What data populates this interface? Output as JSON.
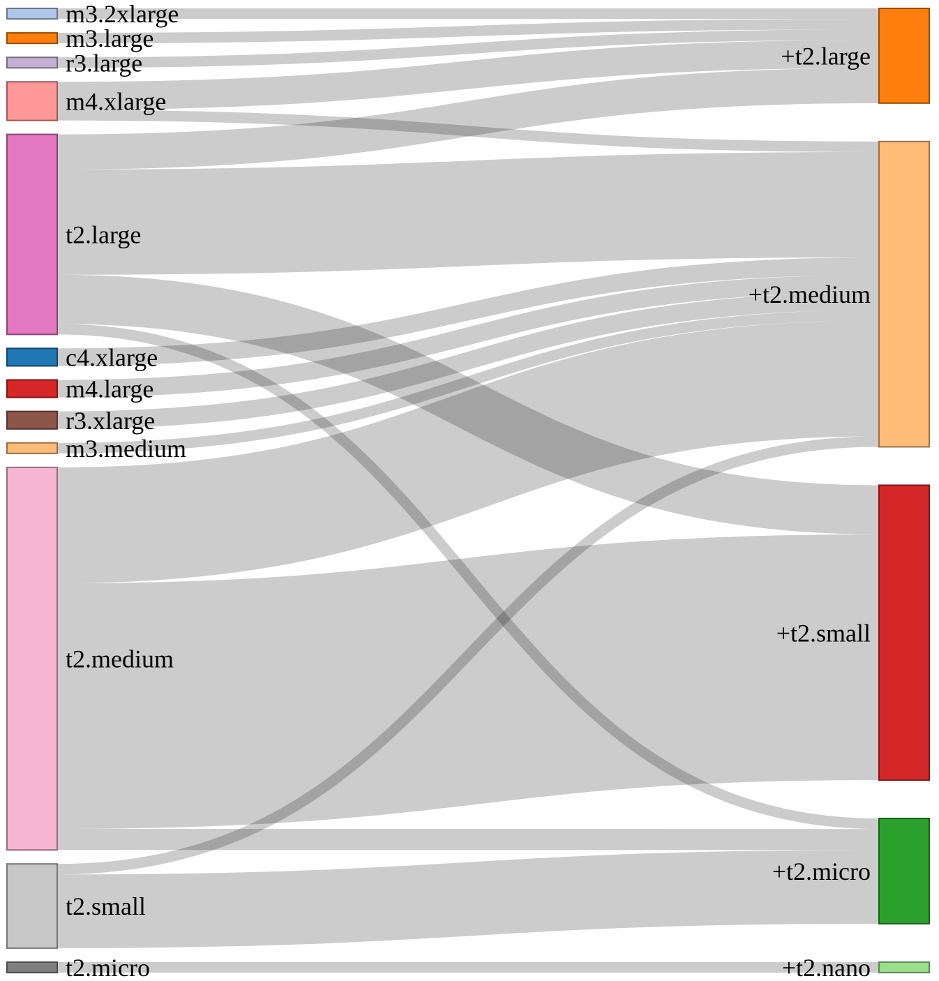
{
  "chart_data": {
    "type": "sankey",
    "title": "",
    "source_nodes": [
      {
        "id": "m3.2xlarge",
        "label": "m3.2xlarge",
        "color": "#aec7e8",
        "value": 3
      },
      {
        "id": "m3.large",
        "label": "m3.large",
        "color": "#ff7f0e",
        "value": 3
      },
      {
        "id": "r3.large",
        "label": "r3.large",
        "color": "#c5b0d5",
        "value": 3
      },
      {
        "id": "m4.xlarge",
        "label": "m4.xlarge",
        "color": "#ff9896",
        "value": 11
      },
      {
        "id": "t2.large",
        "label": "t2.large",
        "color": "#e377c2",
        "value": 57
      },
      {
        "id": "c4.xlarge",
        "label": "c4.xlarge",
        "color": "#1f77b4",
        "value": 5
      },
      {
        "id": "m4.large",
        "label": "m4.large",
        "color": "#d62728",
        "value": 5
      },
      {
        "id": "r3.xlarge",
        "label": "r3.xlarge",
        "color": "#8c564b",
        "value": 5
      },
      {
        "id": "m3.medium",
        "label": "m3.medium",
        "color": "#ffbb78",
        "value": 3
      },
      {
        "id": "t2.medium",
        "label": "t2.medium",
        "color": "#f7b6d2",
        "value": 109
      },
      {
        "id": "t2.small",
        "label": "t2.small",
        "color": "#c7c7c7",
        "value": 24
      },
      {
        "id": "t2.micro",
        "label": "t2.micro",
        "color": "#7f7f7f",
        "value": 3
      }
    ],
    "target_nodes": [
      {
        "id": "+t2.large",
        "label": "+t2.large",
        "color": "#ff7f0e",
        "value": 27
      },
      {
        "id": "+t2.medium",
        "label": "+t2.medium",
        "color": "#ffbb78",
        "value": 87
      },
      {
        "id": "+t2.small",
        "label": "+t2.small",
        "color": "#d62728",
        "value": 84
      },
      {
        "id": "+t2.micro",
        "label": "+t2.micro",
        "color": "#2ca02c",
        "value": 30
      },
      {
        "id": "+t2.nano",
        "label": "+t2.nano",
        "color": "#98df8a",
        "value": 3
      }
    ],
    "links": [
      {
        "source": "m3.2xlarge",
        "target": "+t2.large",
        "value": 3
      },
      {
        "source": "m3.large",
        "target": "+t2.large",
        "value": 3
      },
      {
        "source": "r3.large",
        "target": "+t2.large",
        "value": 3
      },
      {
        "source": "m4.xlarge",
        "target": "+t2.large",
        "value": 8
      },
      {
        "source": "m4.xlarge",
        "target": "+t2.medium",
        "value": 3
      },
      {
        "source": "t2.large",
        "target": "+t2.large",
        "value": 10
      },
      {
        "source": "t2.large",
        "target": "+t2.medium",
        "value": 30
      },
      {
        "source": "t2.large",
        "target": "+t2.small",
        "value": 14
      },
      {
        "source": "t2.large",
        "target": "+t2.micro",
        "value": 3
      },
      {
        "source": "c4.xlarge",
        "target": "+t2.medium",
        "value": 5
      },
      {
        "source": "m4.large",
        "target": "+t2.medium",
        "value": 5
      },
      {
        "source": "r3.xlarge",
        "target": "+t2.medium",
        "value": 5
      },
      {
        "source": "m3.medium",
        "target": "+t2.medium",
        "value": 3
      },
      {
        "source": "t2.medium",
        "target": "+t2.medium",
        "value": 33
      },
      {
        "source": "t2.medium",
        "target": "+t2.small",
        "value": 70
      },
      {
        "source": "t2.medium",
        "target": "+t2.micro",
        "value": 6
      },
      {
        "source": "t2.small",
        "target": "+t2.medium",
        "value": 3
      },
      {
        "source": "t2.small",
        "target": "+t2.micro",
        "value": 21
      },
      {
        "source": "t2.micro",
        "target": "+t2.nano",
        "value": 3
      }
    ]
  }
}
